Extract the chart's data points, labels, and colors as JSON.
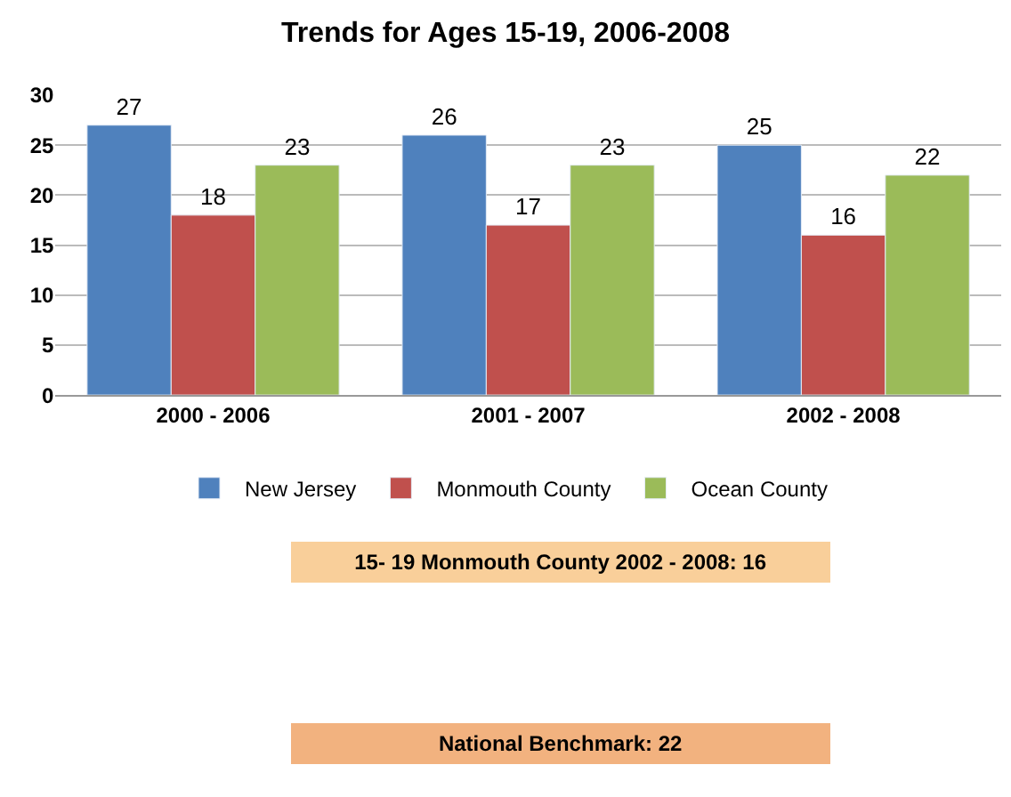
{
  "chart_data": {
    "type": "bar",
    "title": "Trends for Ages 15-19, 2006-2008",
    "categories": [
      "2000 - 2006",
      "2001 - 2007",
      "2002 - 2008"
    ],
    "series": [
      {
        "name": "New Jersey",
        "color": "#4f81bd",
        "values": [
          27,
          26,
          25
        ]
      },
      {
        "name": "Monmouth County",
        "color": "#c0504d",
        "values": [
          18,
          17,
          16
        ]
      },
      {
        "name": "Ocean County",
        "color": "#9bbb59",
        "values": [
          23,
          23,
          22
        ]
      }
    ],
    "ylim": [
      0,
      30
    ],
    "yticks": [
      0,
      5,
      10,
      15,
      20,
      25,
      30
    ],
    "grid": "y",
    "legend": "bottom",
    "data_labels": true,
    "annotations": [
      "15- 19 Monmouth County 2002 - 2008: 16",
      "National Benchmark: 22"
    ]
  }
}
